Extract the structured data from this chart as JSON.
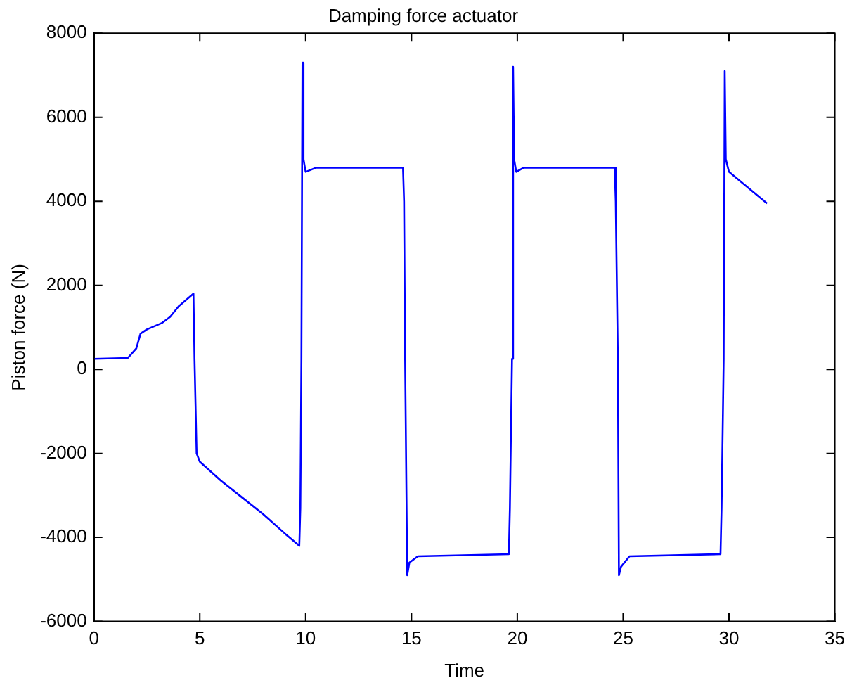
{
  "chart_data": {
    "type": "line",
    "title": "Damping force actuator",
    "xlabel": "Time",
    "ylabel": "Piston force (N)",
    "xlim": [
      0,
      35
    ],
    "xticks": [
      0,
      5,
      10,
      15,
      20,
      25,
      30,
      35
    ],
    "ylim": [
      -6000,
      8000
    ],
    "yticks": [
      -6000,
      -4000,
      -2000,
      0,
      2000,
      4000,
      6000,
      8000
    ],
    "grid": false,
    "legend": false,
    "marker": "none",
    "line_style": "solid",
    "series": [
      {
        "color": "#0000ff",
        "x": [
          0,
          1.6,
          2.0,
          2.2,
          2.5,
          3.2,
          3.6,
          4.0,
          4.7,
          4.75,
          4.85,
          5.0,
          6,
          7,
          8,
          9,
          9.7,
          9.75,
          9.8,
          9.85,
          9.9,
          10,
          10.5,
          14.6,
          14.65,
          14.7,
          14.8,
          14.9,
          15.3,
          19.6,
          19.65,
          19.75,
          19.8,
          19.85,
          19.95,
          20.3,
          24.6,
          24.65,
          24.75,
          24.8,
          24.9,
          25.3,
          29.6,
          29.65,
          29.75,
          29.8,
          29.85,
          30,
          31.8
        ],
        "values": [
          250,
          270,
          500,
          850,
          950,
          1100,
          1250,
          1500,
          1800,
          250,
          -2000,
          -2200,
          -2650,
          -3050,
          -3450,
          -3900,
          -4200,
          -3300,
          250,
          7300,
          5000,
          4700,
          4800,
          4800,
          4000,
          250,
          -4900,
          -4600,
          -4450,
          -4400,
          -3300,
          250,
          7200,
          5000,
          4700,
          4800,
          4800,
          4000,
          250,
          -4900,
          -4700,
          -4450,
          -4400,
          -3300,
          250,
          7100,
          5000,
          4700,
          3950
        ]
      }
    ]
  }
}
